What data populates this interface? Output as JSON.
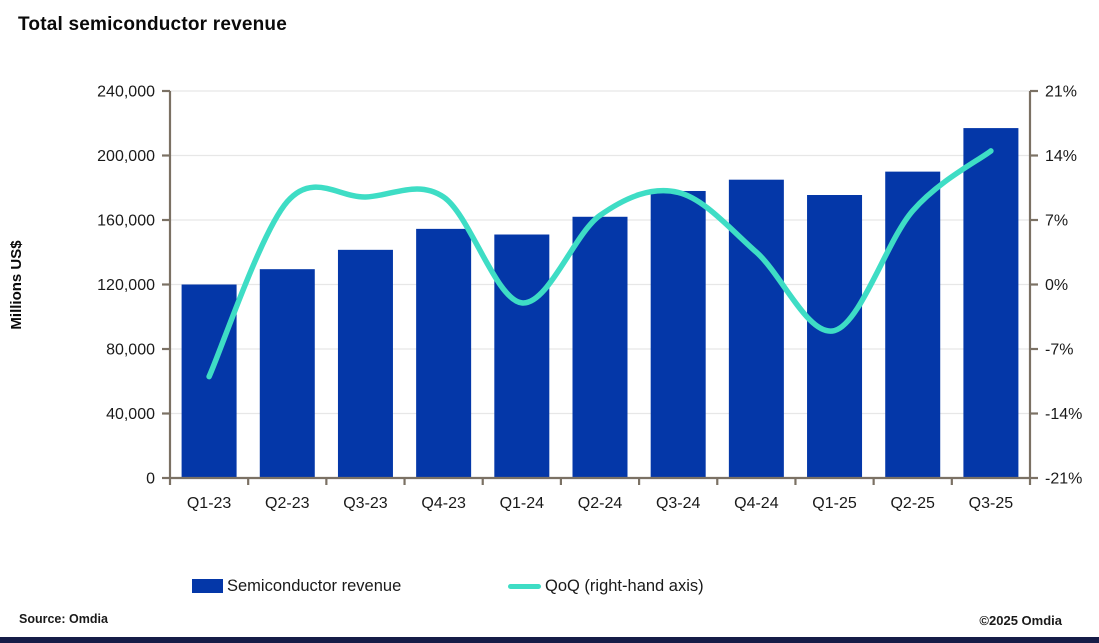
{
  "page": {
    "title": "Total semiconductor revenue",
    "source": "Source: Omdia",
    "copyright": "©2025 Omdia"
  },
  "colors": {
    "bar": "#0437a8",
    "line": "#3eddc5",
    "axis": "#7b7164",
    "grid": "#e7e7e7",
    "text": "#1a1a1a",
    "brand_bar": "#161c47"
  },
  "legend": {
    "items": [
      {
        "label": "Semiconductor revenue",
        "type": "bar",
        "color": "#0437a8"
      },
      {
        "label": "QoQ (right-hand axis)",
        "type": "line",
        "color": "#3eddc5"
      }
    ]
  },
  "chart_data": {
    "type": "bar",
    "title": "Total semiconductor revenue",
    "categories": [
      "Q1-23",
      "Q2-23",
      "Q3-23",
      "Q4-23",
      "Q1-24",
      "Q2-24",
      "Q3-24",
      "Q4-24",
      "Q1-25",
      "Q2-25",
      "Q3-25"
    ],
    "series": [
      {
        "name": "Semiconductor revenue",
        "type": "bar",
        "axis": "left",
        "color": "#0437a8",
        "values": [
          120000,
          129500,
          141500,
          154500,
          151000,
          162000,
          178000,
          185000,
          175500,
          190000,
          217000
        ]
      },
      {
        "name": "QoQ (right-hand axis)",
        "type": "line",
        "axis": "right",
        "color": "#3eddc5",
        "smooth": true,
        "values": [
          -10,
          9,
          9.5,
          9.5,
          -2,
          7.5,
          10,
          3.5,
          -5,
          8,
          14.5
        ]
      }
    ],
    "left_axis": {
      "label": "Millions US$",
      "min": 0,
      "max": 240000,
      "step": 40000,
      "ticks": [
        "0",
        "40,000",
        "80,000",
        "120,000",
        "160,000",
        "200,000",
        "240,000"
      ]
    },
    "right_axis": {
      "label": "",
      "min": -21,
      "max": 21,
      "step": 7,
      "unit": "%",
      "ticks": [
        "-21%",
        "-14%",
        "-7%",
        "0%",
        "7%",
        "14%",
        "21%"
      ]
    },
    "grid": true,
    "legend_position": "bottom"
  }
}
